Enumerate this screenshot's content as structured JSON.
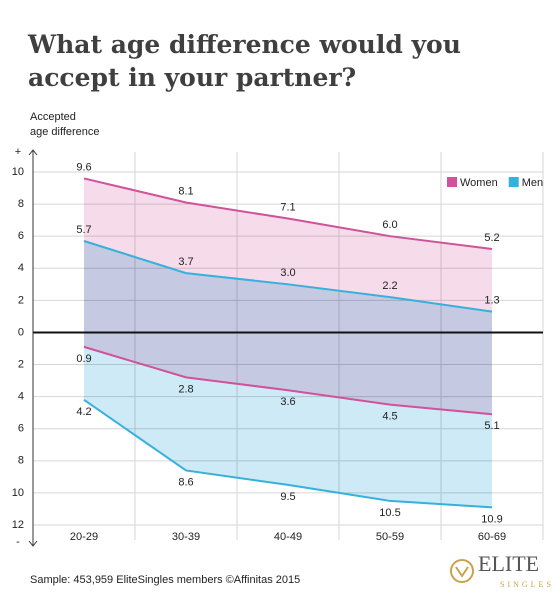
{
  "chart_data": {
    "type": "range-area",
    "title": "What age difference would you accept in your partner?",
    "y_label": [
      "Accepted",
      "age difference"
    ],
    "y_top_marker": "+",
    "y_bottom_marker": "-",
    "categories": [
      "20-29",
      "30-39",
      "40-49",
      "50-59",
      "60-69"
    ],
    "series": [
      {
        "name": "Women",
        "color": "#d0529a",
        "fill": "#f6dbea",
        "high": [
          9.6,
          8.1,
          7.1,
          6.0,
          5.2
        ],
        "high_labels": [
          "9.6",
          "8.1",
          "7.1",
          "6.0",
          "5.2"
        ],
        "low": [
          -0.9,
          -2.8,
          -3.6,
          -4.5,
          -5.1
        ],
        "low_labels": [
          "0.9",
          "2.8",
          "3.6",
          "4.5",
          "5.1"
        ]
      },
      {
        "name": "Men",
        "color": "#35b1dc",
        "fill": "#cdeaf6",
        "high": [
          5.7,
          3.7,
          3.0,
          2.2,
          1.3
        ],
        "high_labels": [
          "5.7",
          "3.7",
          "3.0",
          "2.2",
          "1.3"
        ],
        "low": [
          -4.2,
          -8.6,
          -9.5,
          -10.5,
          -10.9
        ],
        "low_labels": [
          "4.2",
          "8.6",
          "9.5",
          "10.5",
          "10.9"
        ]
      }
    ],
    "ylim": [
      -12,
      10
    ],
    "yticks": [
      10,
      8,
      6,
      4,
      2,
      0,
      {
        "value": -2,
        "label": "2"
      },
      {
        "value": -4,
        "label": "4"
      },
      {
        "value": -6,
        "label": "6"
      },
      {
        "value": -8,
        "label": "8"
      },
      {
        "value": -10,
        "label": "10"
      },
      {
        "value": -12,
        "label": "12"
      }
    ],
    "grid": true,
    "legend": "top-right",
    "footer": "Sample: 453,959 EliteSingles members  ©Affinitas 2015",
    "logo": {
      "top": "ELITE",
      "bottom": "SINGLES"
    }
  }
}
